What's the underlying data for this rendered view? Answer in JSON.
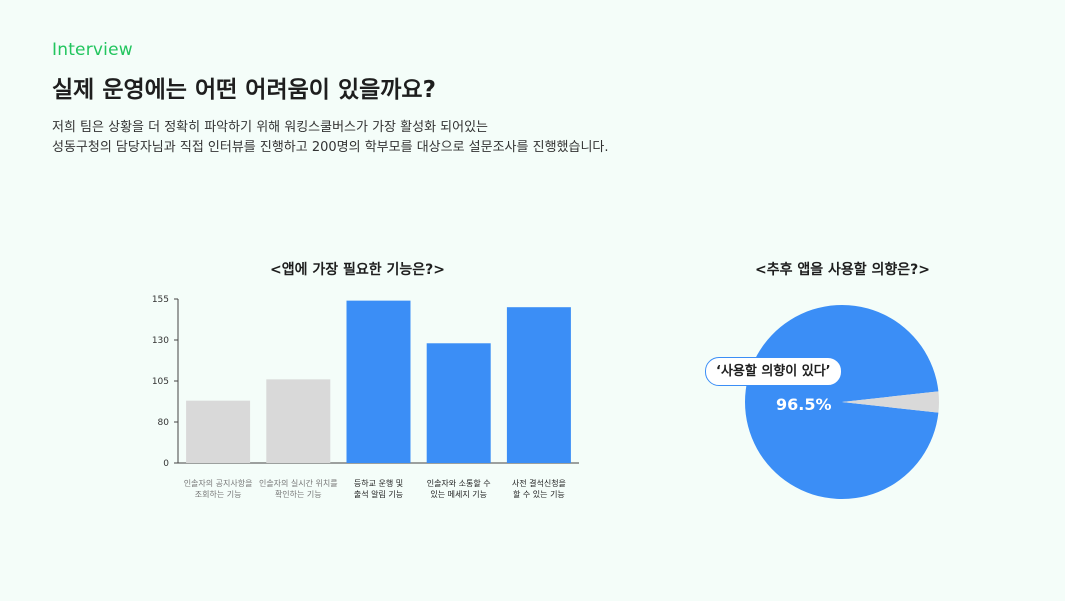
{
  "header": {
    "eyebrow": "Interview",
    "title": "실제 운영에는 어떤 어려움이 있을까요?",
    "desc_line1": "저희 팀은 상황을 더 정확히 파악하기 위해 워킹스쿨버스가 가장 활성화 되어있는",
    "desc_line2": "성동구청의 담당자님과 직접 인터뷰를 진행하고 200명의 학부모를 대상으로 설문조사를 진행했습니다."
  },
  "colors": {
    "accent": "#22c55e",
    "highlight_bar": "#3b8ef6",
    "muted_bar": "#d9d9d9",
    "background": "#f4fdf9"
  },
  "chart_data": [
    {
      "type": "bar",
      "title": "<앱에 가장 필요한 기능은?>",
      "categories": [
        [
          "인솔자의 공지사항을",
          "조회하는 기능"
        ],
        [
          "인솔자의 실시간 위치를",
          "확인하는 기능"
        ],
        [
          "등하교 운행 및",
          "출석 알림 기능"
        ],
        [
          "인솔자와 소통할 수",
          "있는 메세지 기능"
        ],
        [
          "사전 결석신청을",
          "할 수 있는 기능"
        ]
      ],
      "values": [
        93,
        106,
        154,
        128,
        150
      ],
      "highlight": [
        false,
        false,
        true,
        true,
        true
      ],
      "yticks": [
        0,
        80,
        105,
        130,
        155
      ],
      "ylim": [
        0,
        155
      ]
    },
    {
      "type": "pie",
      "title": "<추후 앱을 사용할 의향은?>",
      "slices": [
        {
          "label": "‘사용할 의향이 있다’",
          "value": 96.5,
          "display": "96.5%",
          "color": "#3b8ef6"
        },
        {
          "value": 3.5,
          "color": "#d9d9d9"
        }
      ]
    }
  ]
}
